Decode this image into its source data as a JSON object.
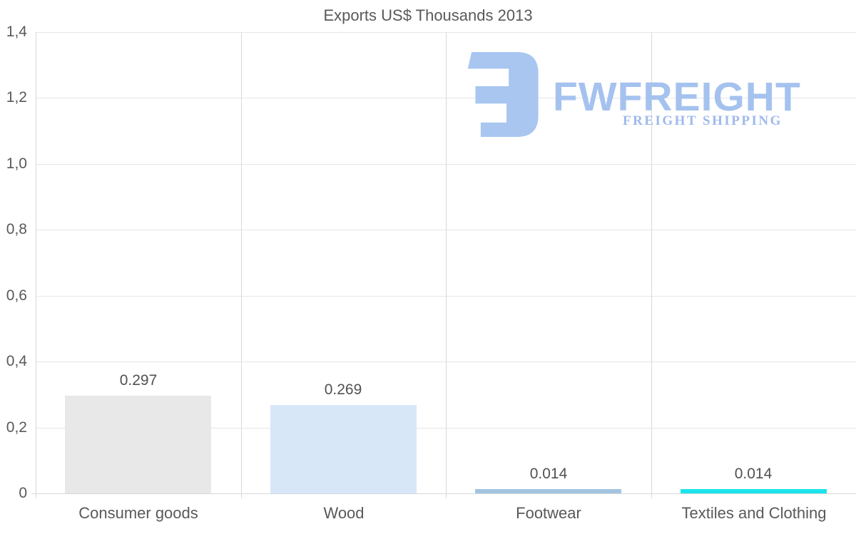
{
  "chart_data": {
    "type": "bar",
    "title": "Exports US$ Thousands 2013",
    "categories": [
      "Consumer goods",
      "Wood",
      "Footwear",
      "Textiles and Clothing"
    ],
    "values": [
      0.297,
      0.269,
      0.014,
      0.014
    ],
    "value_labels": [
      "0.297",
      "0.269",
      "0.014",
      "0.014"
    ],
    "bar_colors": [
      "#e8e8e8",
      "#d8e7f8",
      "#a3c4e1",
      "#1be4ea"
    ],
    "xlabel": "",
    "ylabel": "",
    "ylim": [
      0,
      1.4
    ],
    "yticks": [
      {
        "value": 0,
        "label": "0"
      },
      {
        "value": 0.2,
        "label": "0,2"
      },
      {
        "value": 0.4,
        "label": "0,4"
      },
      {
        "value": 0.6,
        "label": "0,6"
      },
      {
        "value": 0.8,
        "label": "0,8"
      },
      {
        "value": 1.0,
        "label": "1,0"
      },
      {
        "value": 1.2,
        "label": "1,2"
      },
      {
        "value": 1.4,
        "label": "1,4"
      }
    ],
    "grid": {
      "horizontal": true,
      "vertical_category_separators": true
    },
    "legend": null,
    "style": {
      "title_color": "#595959",
      "tick_label_color": "#595959",
      "value_label_color": "#515151",
      "grid_color": "#e6e6e6",
      "axis_line_color": "#d9d9d9",
      "background": "#ffffff"
    }
  },
  "watermark": {
    "brand": "FWFREIGHT",
    "tagline": "FREIGHT SHIPPING",
    "brand_color": "#a5c2ef",
    "tagline_color": "#9fb9ec",
    "mark_color": "#a8c6f0"
  }
}
